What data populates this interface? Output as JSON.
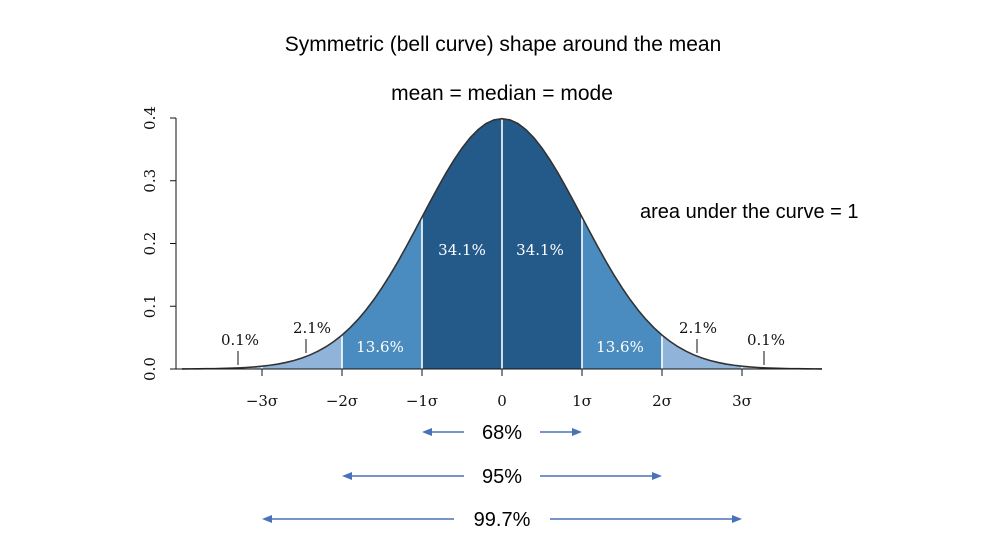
{
  "chart_data": {
    "type": "area",
    "title": "Symmetric (bell curve) shape around the mean",
    "subtitle": "mean = median = mode",
    "annotation": "area under the curve = 1",
    "distribution": "standard normal",
    "xlim": [
      -4,
      4
    ],
    "ylim": [
      0,
      0.4
    ],
    "y_ticks": [
      {
        "value": 0.0,
        "label": "0.0"
      },
      {
        "value": 0.1,
        "label": "0.1"
      },
      {
        "value": 0.2,
        "label": "0.2"
      },
      {
        "value": 0.3,
        "label": "0.3"
      },
      {
        "value": 0.4,
        "label": "0.4"
      }
    ],
    "x_ticks": [
      {
        "value": -3,
        "label": "−3σ"
      },
      {
        "value": -2,
        "label": "−2σ"
      },
      {
        "value": -1,
        "label": "−1σ"
      },
      {
        "value": 0,
        "label": "0"
      },
      {
        "value": 1,
        "label": "1σ"
      },
      {
        "value": 2,
        "label": "2σ"
      },
      {
        "value": 3,
        "label": "3σ"
      }
    ],
    "regions": [
      {
        "from": -1,
        "to": 0,
        "label": "34.1%",
        "color": "#245a8a"
      },
      {
        "from": 0,
        "to": 1,
        "label": "34.1%",
        "color": "#245a8a"
      },
      {
        "from": -2,
        "to": -1,
        "label": "13.6%",
        "color": "#4a8cbf"
      },
      {
        "from": 1,
        "to": 2,
        "label": "13.6%",
        "color": "#4a8cbf"
      },
      {
        "from": -3,
        "to": -2,
        "label": "2.1%",
        "color": "#8fb3d9"
      },
      {
        "from": 2,
        "to": 3,
        "label": "2.1%",
        "color": "#8fb3d9"
      },
      {
        "from": -4,
        "to": -3,
        "label": "0.1%",
        "color": "#b6cde6"
      },
      {
        "from": 3,
        "to": 4,
        "label": "0.1%",
        "color": "#b6cde6"
      }
    ],
    "ranges": [
      {
        "from": -1,
        "to": 1,
        "label": "68%"
      },
      {
        "from": -2,
        "to": 2,
        "label": "95%"
      },
      {
        "from": -3,
        "to": 3,
        "label": "99.7%"
      }
    ],
    "arrow_color": "#4a72b8",
    "curve_color": "#333333"
  }
}
